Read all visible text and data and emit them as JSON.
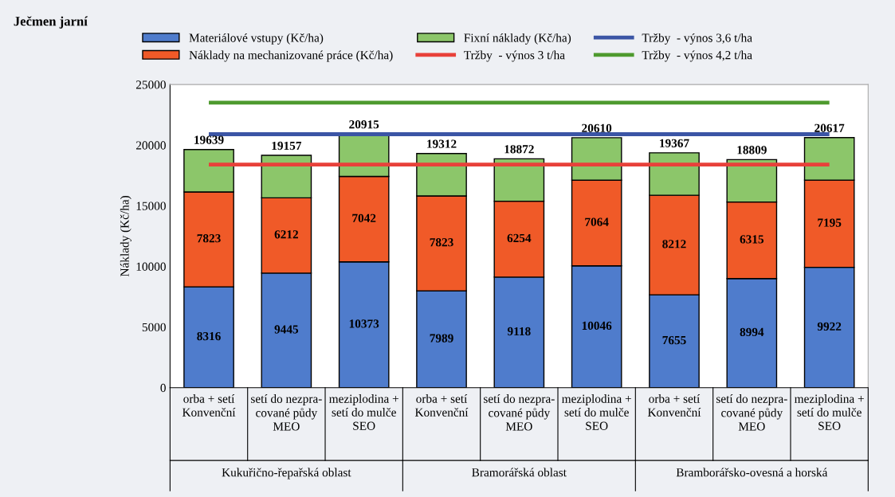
{
  "chart_data": {
    "type": "bar",
    "stacked": true,
    "title": "Ječmen jarní",
    "ylabel": "Náklady (Kč/ha)",
    "categories": [
      "orba + setí\nKonvenční",
      "setí do nezpra-\ncované půdy\nMEO",
      "meziplodina +\nsetí do mulče\nSEO",
      "orba + setí\nKonvenční",
      "setí do nezpra-\ncované půdy\nMEO",
      "meziplodina +\nsetí do mulče\nSEO",
      "orba + setí\nKonvenční",
      "setí do nezpra-\ncované půdy\nMEO",
      "meziplodina +\nsetí do mulče\nSEO"
    ],
    "series": [
      {
        "name": "Materiálové vstupy (Kč/ha)",
        "color": "#4f7ccc",
        "values": [
          8316,
          9445,
          10373,
          7989,
          9118,
          10046,
          7655,
          8994,
          9922
        ],
        "value_labels": [
          "8316",
          "9445",
          "10373",
          "7989",
          "9118",
          "10046",
          "7655",
          "8994",
          "9922"
        ]
      },
      {
        "name": "Náklady na mechanizované práce (Kč/ha)",
        "color": "#f05a28",
        "values": [
          7823,
          6212,
          7042,
          7823,
          6254,
          7064,
          8212,
          6315,
          7195
        ],
        "value_labels": [
          "7823",
          "6212",
          "7042",
          "7823",
          "6254",
          "7064",
          "8212",
          "6315",
          "7195"
        ]
      },
      {
        "name": "Fixní náklady (Kč/ha)",
        "color": "#8cc66a",
        "values": [
          3500,
          3500,
          3500,
          3500,
          3500,
          3500,
          3500,
          3500,
          3500
        ]
      },
      {
        "name": "Tržby  - výnos 3 t/ha",
        "type": "line",
        "color": "#e8413a",
        "values": [
          18400,
          18400,
          18400,
          18400,
          18400,
          18400,
          18400,
          18400,
          18400
        ]
      },
      {
        "name": "Tržby  - výnos 3,6 t/ha",
        "type": "line",
        "color": "#3b55a5",
        "values": [
          20900,
          20900,
          20900,
          20900,
          20900,
          20900,
          20900,
          20900,
          20900
        ]
      },
      {
        "name": "Tržby  - výnos 4,2 t/ha",
        "type": "line",
        "color": "#4e9a2e",
        "values": [
          23500,
          23500,
          23500,
          23500,
          23500,
          23500,
          23500,
          23500,
          23500
        ]
      }
    ],
    "totals": [
      "19639",
      "19157",
      "20915",
      "19312",
      "18872",
      "20610",
      "19367",
      "18809",
      "20617"
    ],
    "annotations": [
      "Kukuřično-řepařská oblast",
      "Bramorářská oblast",
      "Bramborářsko-ovesná a horská"
    ],
    "ylim": [
      0,
      25000
    ],
    "yticks": [
      0,
      5000,
      10000,
      15000,
      20000,
      25000
    ],
    "grid": false,
    "legend": "top"
  }
}
